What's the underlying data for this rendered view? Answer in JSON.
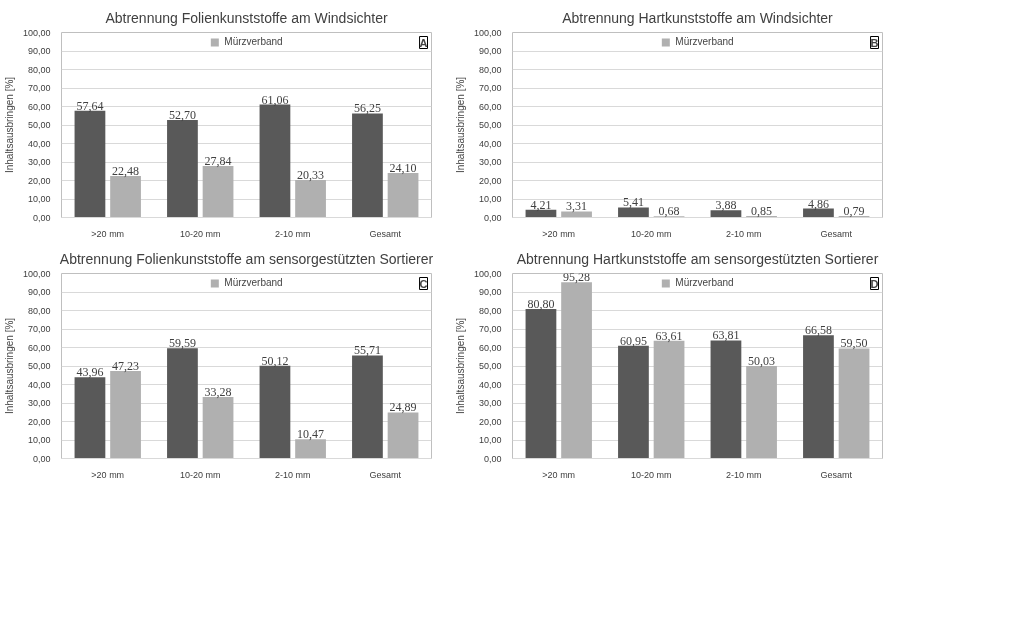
{
  "chart_data": [
    {
      "type": "bar",
      "title": "Abtrennung Folienkunststoffe am Windsichter",
      "ylabel": "Inhaltsausbringen [%]",
      "annotations": [
        "A"
      ],
      "categories": [
        ">20 mm",
        "10-20 mm",
        "2-10 mm",
        "Gesamt"
      ],
      "series": [
        {
          "color": "#595959",
          "values": [
            57.64,
            52.7,
            61.06,
            56.25
          ],
          "value_labels": [
            "57,64",
            "52,70",
            "61,06",
            "56,25"
          ]
        },
        {
          "name": "Mürzverband",
          "color": "#b0b0b0",
          "values": [
            22.48,
            27.84,
            20.33,
            24.1
          ],
          "value_labels": [
            "22,48",
            "27,84",
            "20,33",
            "24,10"
          ]
        }
      ],
      "ylim": [
        0,
        100
      ],
      "yticks": [
        {
          "value": 0,
          "label": "0,00"
        },
        {
          "value": 10,
          "label": "10,00"
        },
        {
          "value": 20,
          "label": "20,00"
        },
        {
          "value": 30,
          "label": "30,00"
        },
        {
          "value": 40,
          "label": "40,00"
        },
        {
          "value": 50,
          "label": "50,00"
        },
        {
          "value": 60,
          "label": "60,00"
        },
        {
          "value": 70,
          "label": "70,00"
        },
        {
          "value": 80,
          "label": "80,00"
        },
        {
          "value": 90,
          "label": "90,00"
        },
        {
          "value": 100,
          "label": "100,00"
        }
      ],
      "grid": "y",
      "legend": "top"
    },
    {
      "type": "bar",
      "title": "Abtrennung Hartkunststoffe am Windsichter",
      "ylabel": "Inhaltsausbringen [%]",
      "annotations": [
        "B"
      ],
      "categories": [
        ">20 mm",
        "10-20 mm",
        "2-10 mm",
        "Gesamt"
      ],
      "series": [
        {
          "color": "#595959",
          "values": [
            4.21,
            5.41,
            3.88,
            4.86
          ],
          "value_labels": [
            "4,21",
            "5,41",
            "3,88",
            "4,86"
          ]
        },
        {
          "name": "Mürzverband",
          "color": "#b0b0b0",
          "values": [
            3.31,
            0.68,
            0.85,
            0.79
          ],
          "value_labels": [
            "3,31",
            "0,68",
            "0,85",
            "0,79"
          ]
        }
      ],
      "ylim": [
        0,
        100
      ],
      "yticks": [
        {
          "value": 0,
          "label": "0,00"
        },
        {
          "value": 10,
          "label": "10,00"
        },
        {
          "value": 20,
          "label": "20,00"
        },
        {
          "value": 30,
          "label": "30,00"
        },
        {
          "value": 40,
          "label": "40,00"
        },
        {
          "value": 50,
          "label": "50,00"
        },
        {
          "value": 60,
          "label": "60,00"
        },
        {
          "value": 70,
          "label": "70,00"
        },
        {
          "value": 80,
          "label": "80,00"
        },
        {
          "value": 90,
          "label": "90,00"
        },
        {
          "value": 100,
          "label": "100,00"
        }
      ],
      "grid": "y",
      "legend": "top"
    },
    {
      "type": "bar",
      "title": "Abtrennung Folienkunststoffe am sensorgestützten Sortierer",
      "ylabel": "Inhaltsausbringen [%]",
      "annotations": [
        "C"
      ],
      "categories": [
        ">20 mm",
        "10-20 mm",
        "2-10 mm",
        "Gesamt"
      ],
      "series": [
        {
          "color": "#595959",
          "values": [
            43.96,
            59.59,
            50.12,
            55.71
          ],
          "value_labels": [
            "43,96",
            "59,59",
            "50,12",
            "55,71"
          ]
        },
        {
          "name": "Mürzverband",
          "color": "#b0b0b0",
          "values": [
            47.23,
            33.28,
            10.47,
            24.89
          ],
          "value_labels": [
            "47,23",
            "33,28",
            "10,47",
            "24,89"
          ]
        }
      ],
      "ylim": [
        0,
        100
      ],
      "yticks": [
        {
          "value": 0,
          "label": "0,00"
        },
        {
          "value": 10,
          "label": "10,00"
        },
        {
          "value": 20,
          "label": "20,00"
        },
        {
          "value": 30,
          "label": "30,00"
        },
        {
          "value": 40,
          "label": "40,00"
        },
        {
          "value": 50,
          "label": "50,00"
        },
        {
          "value": 60,
          "label": "60,00"
        },
        {
          "value": 70,
          "label": "70,00"
        },
        {
          "value": 80,
          "label": "80,00"
        },
        {
          "value": 90,
          "label": "90,00"
        },
        {
          "value": 100,
          "label": "100,00"
        }
      ],
      "grid": "y",
      "legend": "top"
    },
    {
      "type": "bar",
      "title": "Abtrennung Hartkunststoffe am sensorgestützten Sortierer",
      "ylabel": "Inhaltsausbringen [%]",
      "annotations": [
        "D"
      ],
      "categories": [
        ">20 mm",
        "10-20 mm",
        "2-10 mm",
        "Gesamt"
      ],
      "series": [
        {
          "color": "#595959",
          "values": [
            80.8,
            60.95,
            63.81,
            66.58
          ],
          "value_labels": [
            "80,80",
            "60,95",
            "63,81",
            "66,58"
          ]
        },
        {
          "name": "Mürzverband",
          "color": "#b0b0b0",
          "values": [
            95.28,
            63.61,
            50.03,
            59.5
          ],
          "value_labels": [
            "95,28",
            "63,61",
            "50,03",
            "59,50"
          ]
        }
      ],
      "ylim": [
        0,
        100
      ],
      "yticks": [
        {
          "value": 0,
          "label": "0,00"
        },
        {
          "value": 10,
          "label": "10,00"
        },
        {
          "value": 20,
          "label": "20,00"
        },
        {
          "value": 30,
          "label": "30,00"
        },
        {
          "value": 40,
          "label": "40,00"
        },
        {
          "value": 50,
          "label": "50,00"
        },
        {
          "value": 60,
          "label": "60,00"
        },
        {
          "value": 70,
          "label": "70,00"
        },
        {
          "value": 80,
          "label": "80,00"
        },
        {
          "value": 90,
          "label": "90,00"
        },
        {
          "value": 100,
          "label": "100,00"
        }
      ],
      "grid": "y",
      "legend": "top"
    }
  ]
}
